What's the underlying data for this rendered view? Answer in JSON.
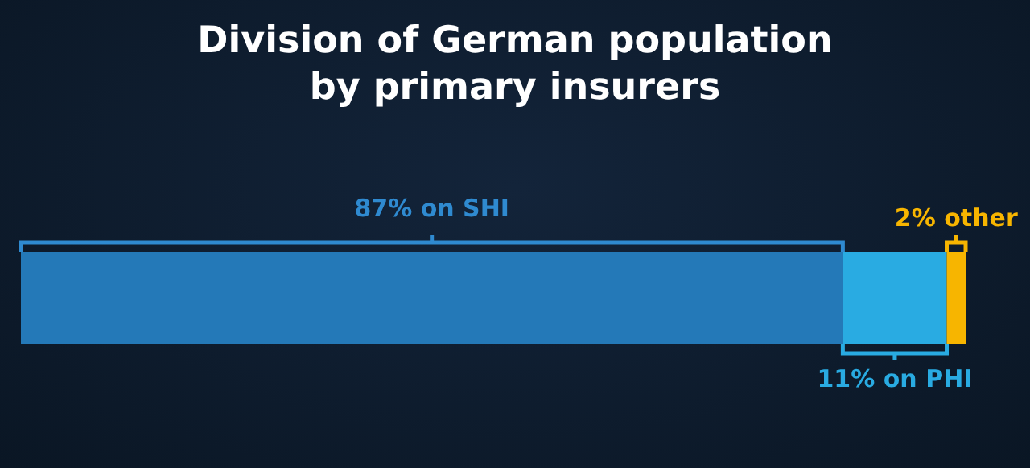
{
  "chart_data": {
    "type": "bar",
    "title": "Division of German population\nby primary insurers",
    "orientation": "horizontal",
    "stacked": true,
    "categories": [
      null
    ],
    "xlim": [
      0,
      100
    ],
    "tick_labels": false,
    "grid": false,
    "series": [
      {
        "color": "#2479b8",
        "values": [
          87
        ],
        "value_labels": [
          "87% on SHI"
        ]
      },
      {
        "color": "#29abe2",
        "values": [
          11
        ],
        "value_labels": [
          "11% on PHI"
        ]
      },
      {
        "color": "#f7b500",
        "values": [
          2
        ],
        "value_labels": [
          "2% other"
        ]
      }
    ]
  }
}
